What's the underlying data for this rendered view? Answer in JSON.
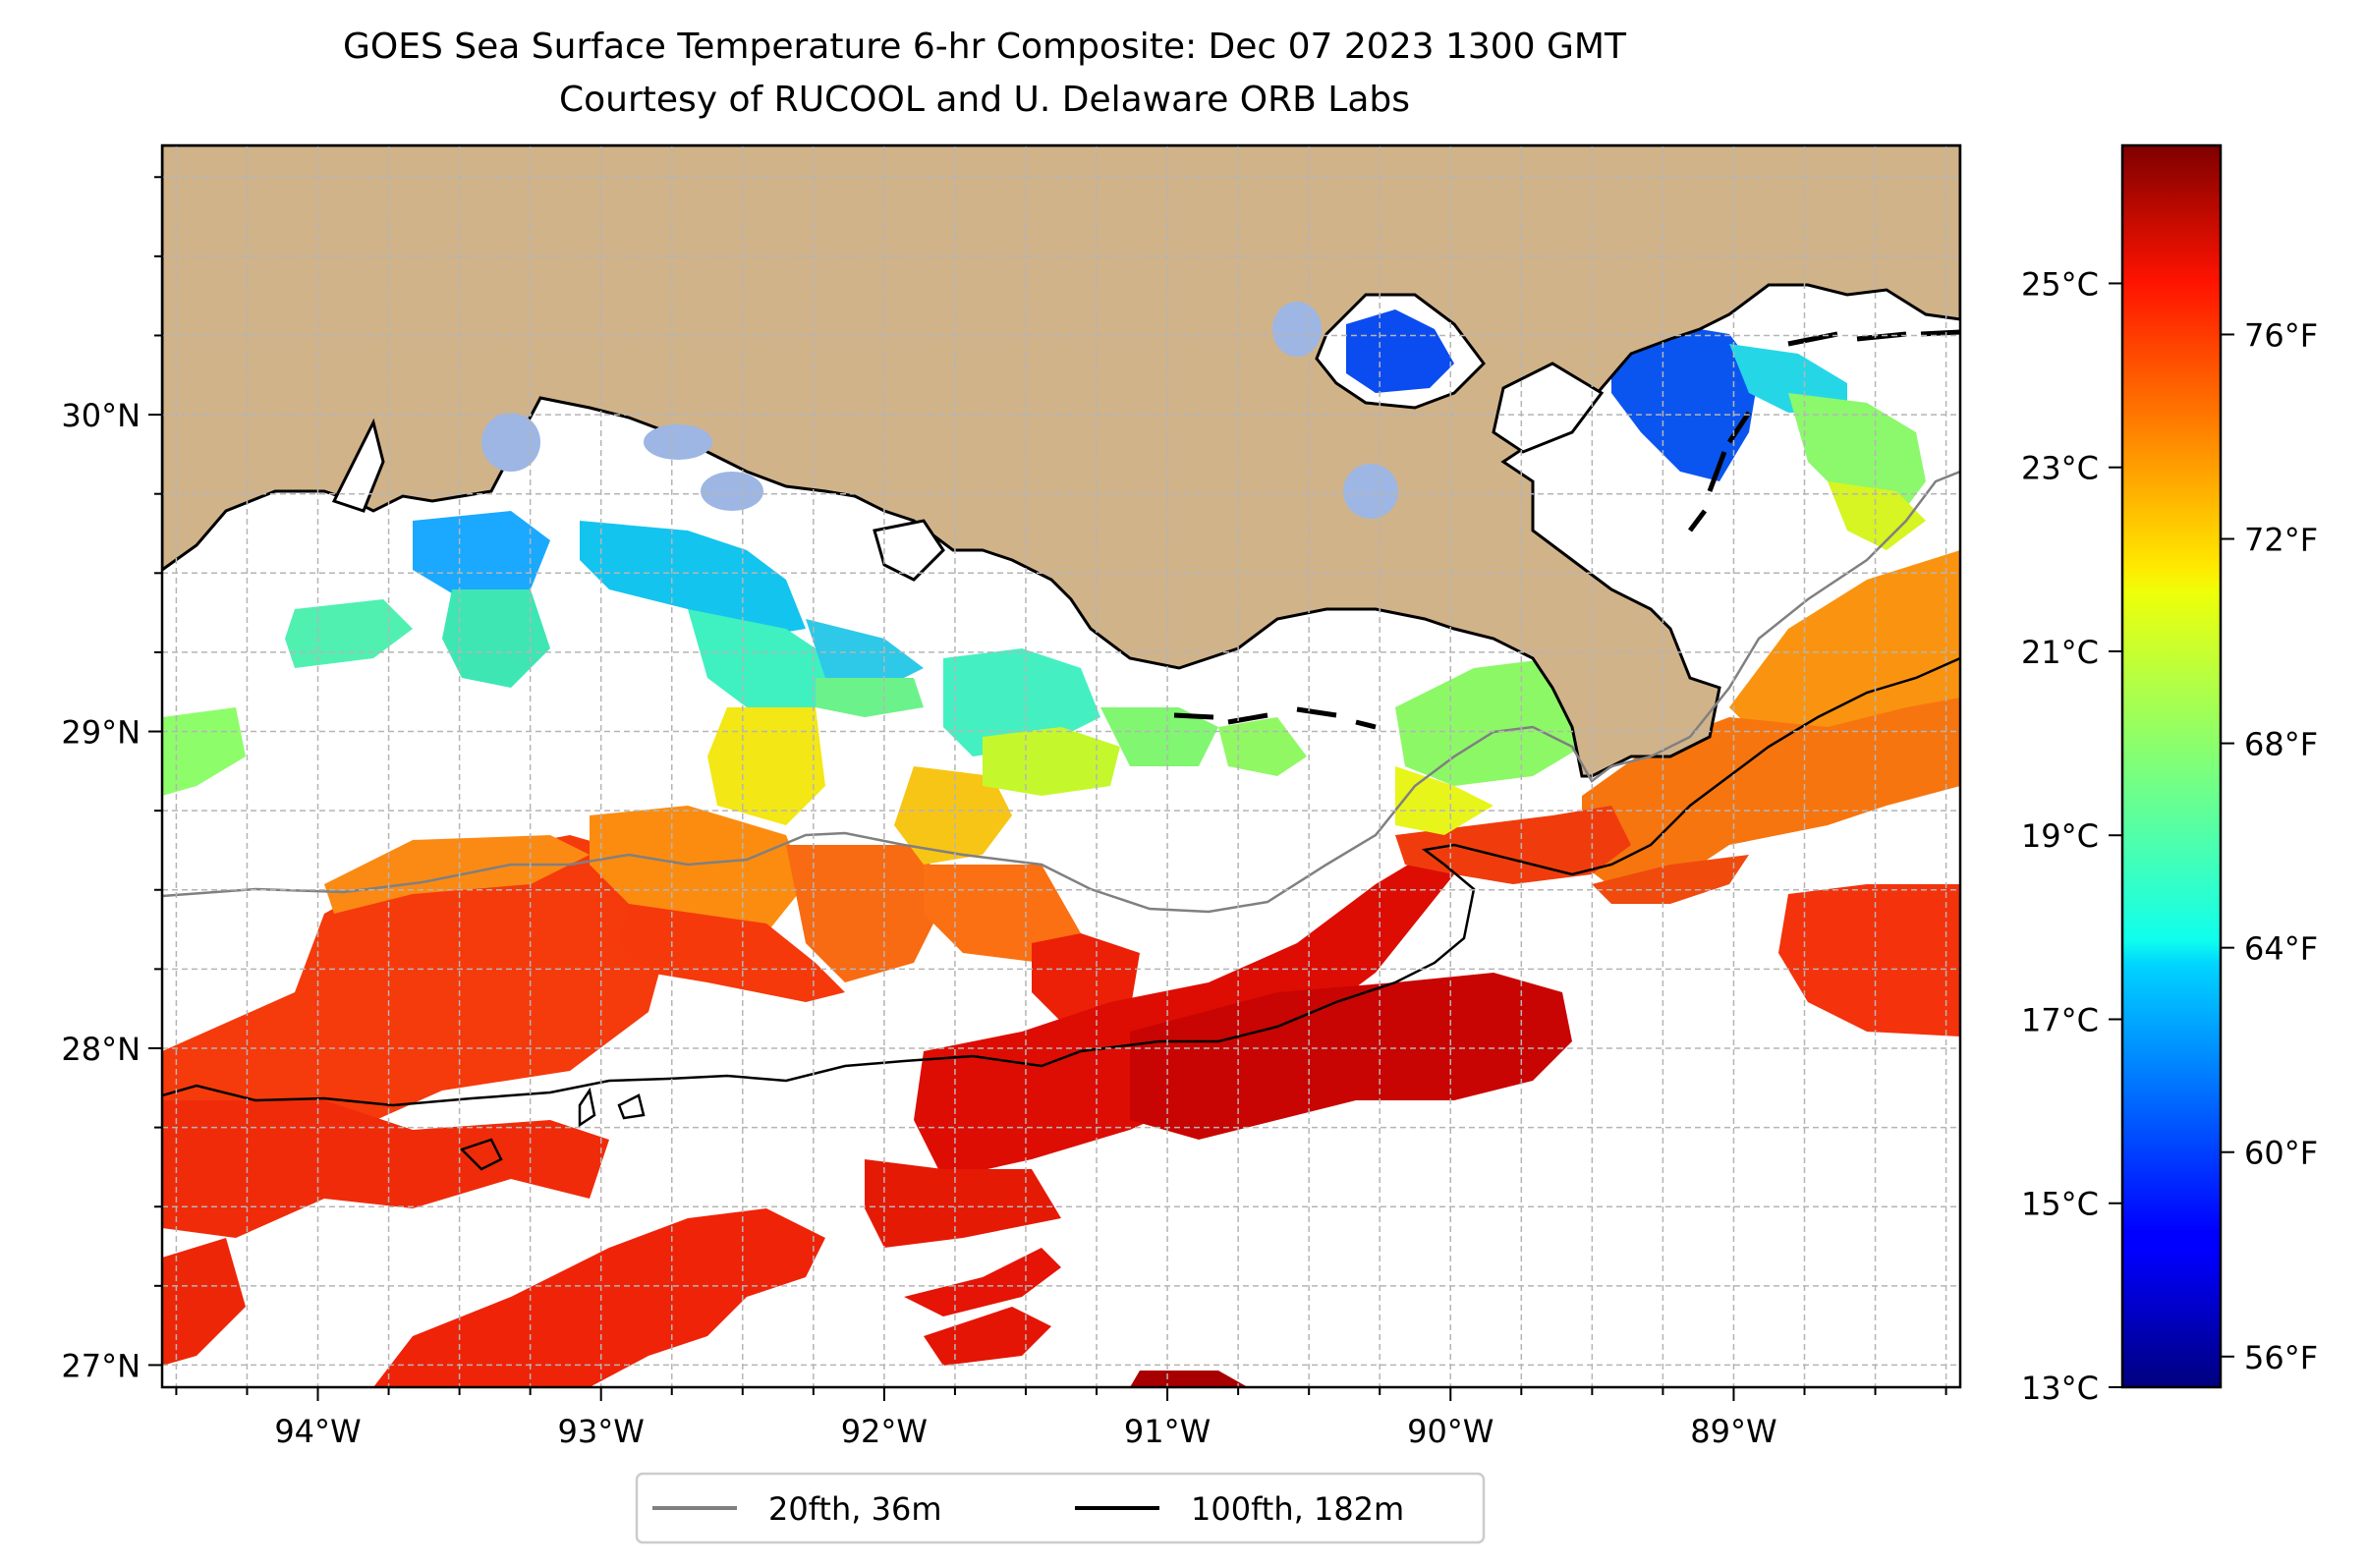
{
  "title": "GOES Sea Surface Temperature 6-hr Composite: Dec 07 2023 1300 GMT",
  "subtitle": "Courtesy of RUCOOL and U. Delaware ORB Labs",
  "map": {
    "extent": {
      "lon_min": -94.55,
      "lon_max": -88.2,
      "lat_min": 26.93,
      "lat_max": 30.85
    },
    "lon_ticks": [
      {
        "v": -94,
        "label": "94°W"
      },
      {
        "v": -93,
        "label": "93°W"
      },
      {
        "v": -92,
        "label": "92°W"
      },
      {
        "v": -91,
        "label": "91°W"
      },
      {
        "v": -90,
        "label": "90°W"
      },
      {
        "v": -89,
        "label": "89°W"
      }
    ],
    "lat_ticks": [
      {
        "v": 27,
        "label": "27°N"
      },
      {
        "v": 28,
        "label": "28°N"
      },
      {
        "v": 29,
        "label": "29°N"
      },
      {
        "v": 30,
        "label": "30°N"
      }
    ],
    "grid": true,
    "colors": {
      "land": "#d1b38a",
      "lakes": "#9db6e3",
      "coast": "#000000",
      "grid": "#b5b5b5"
    }
  },
  "colorbar": {
    "colormap": "jet",
    "range_c": [
      13,
      26.5
    ],
    "celsius_ticks": [
      "13°C",
      "15°C",
      "17°C",
      "19°C",
      "21°C",
      "23°C",
      "25°C"
    ],
    "fahrenheit_ticks": [
      "56°F",
      "60°F",
      "64°F",
      "68°F",
      "72°F",
      "76°F"
    ]
  },
  "legend": {
    "placement": "bottom-center",
    "items": [
      {
        "label": "20fth, 36m",
        "color": "#808080"
      },
      {
        "label": "100fth, 182m",
        "color": "#000000"
      }
    ]
  }
}
